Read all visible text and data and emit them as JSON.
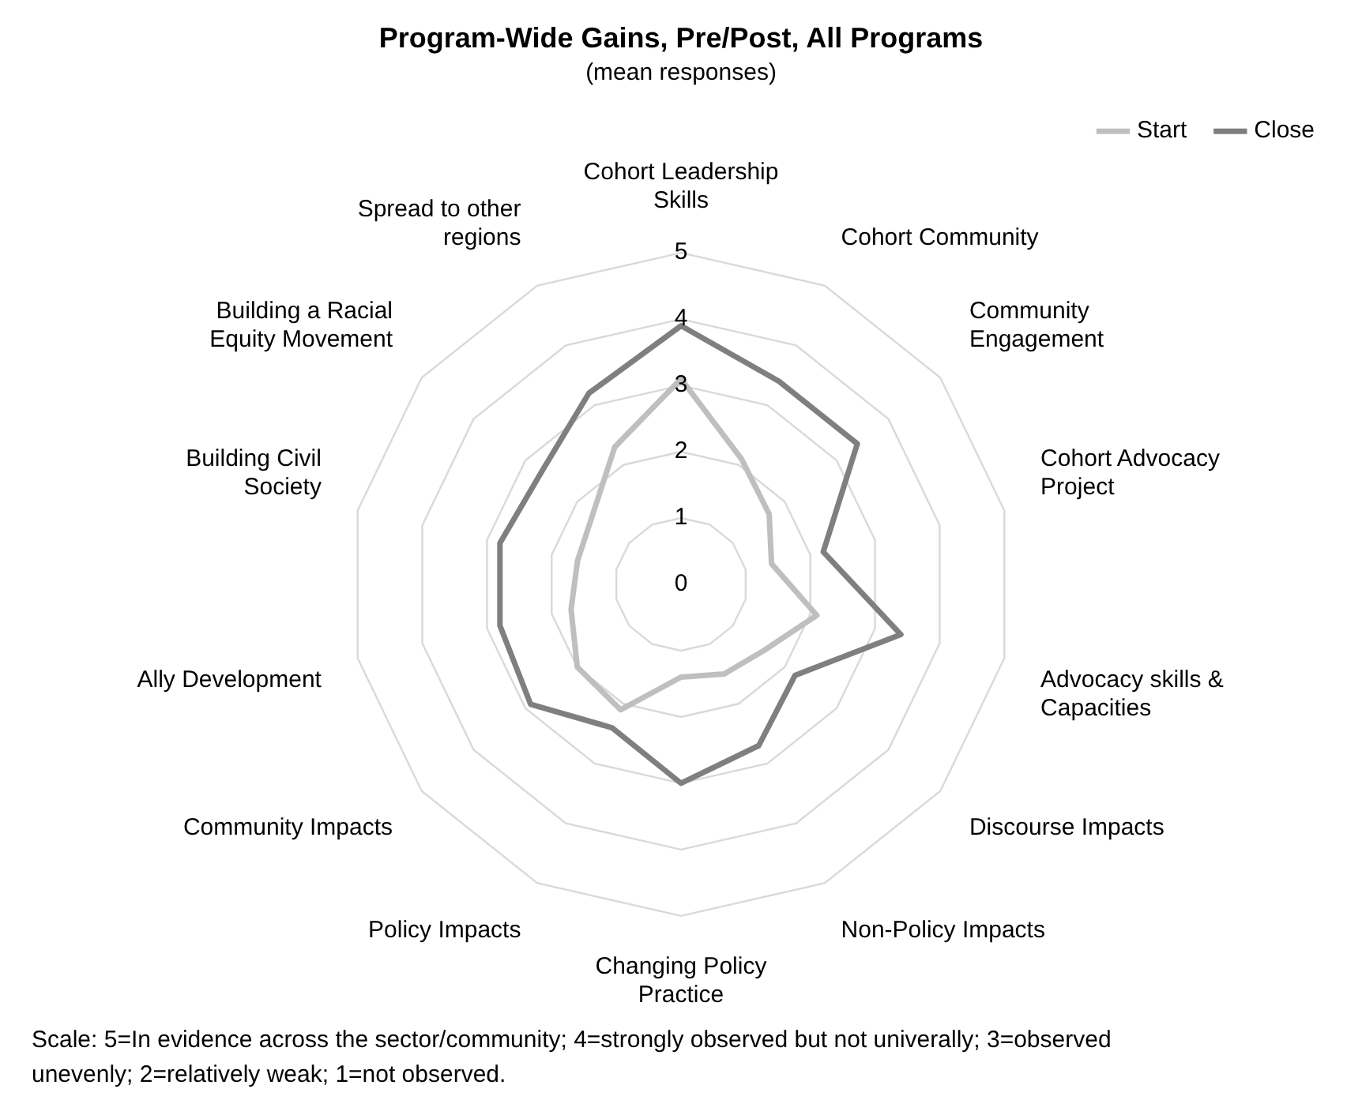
{
  "chart_data": {
    "type": "radar",
    "title": "Program-Wide Gains, Pre/Post, All Programs",
    "subtitle": "(mean responses)",
    "categories": [
      "Cohort Leadership Skills",
      "Cohort Community",
      "Community Engagement",
      "Cohort Advocacy Project",
      "Advocacy skills & Capacities",
      "Discourse Impacts",
      "Non-Policy Impacts",
      "Changing Policy Practice",
      "Policy Impacts",
      "Community Impacts",
      "Ally Development",
      "Building Civil Society",
      "Building a Racial Equity Movement",
      "Spread to other regions"
    ],
    "series": [
      {
        "name": "Start",
        "color": "#bfbfbf",
        "values": [
          3.1,
          2.1,
          1.7,
          1.4,
          2.1,
          1.6,
          1.5,
          1.4,
          2.1,
          2.0,
          1.7,
          1.6,
          1.7,
          2.3
        ]
      },
      {
        "name": "Close",
        "color": "#7f7f7f",
        "values": [
          3.9,
          3.4,
          3.4,
          2.2,
          3.4,
          2.2,
          2.7,
          3.0,
          2.4,
          2.9,
          2.8,
          2.8,
          2.7,
          3.2
        ]
      }
    ],
    "ylim": [
      0,
      5
    ],
    "yticks": [
      0,
      1,
      2,
      3,
      4,
      5
    ],
    "grid": true,
    "legend": "top right",
    "marker": "none",
    "line_style": "solid",
    "annotations": [
      "Scale: 5=In evidence across the sector/community; 4=strongly observed but not univerally; 3=observed unevenly; 2=relatively weak; 1=not observed."
    ]
  }
}
